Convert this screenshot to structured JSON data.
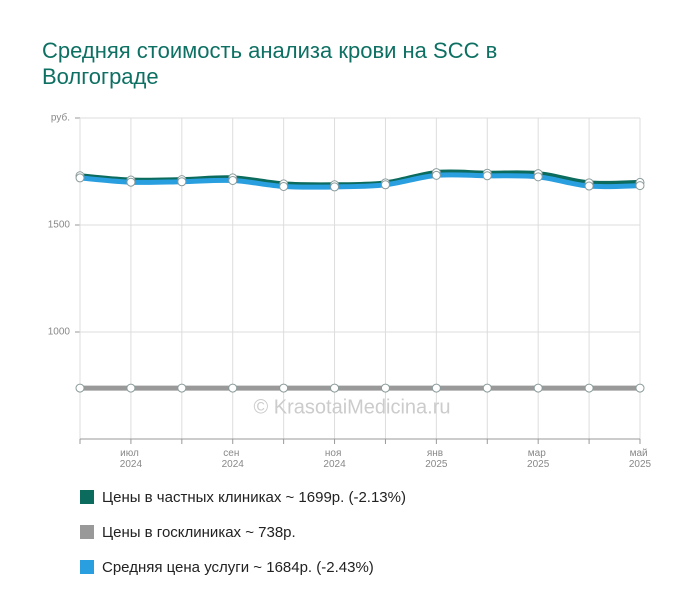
{
  "chart_data": {
    "type": "line",
    "title": "Средняя стоимость анализа крови на SCC в Волгограде",
    "watermark": "© KrasotaiMedicina.ru",
    "categories": [
      null,
      "июл 2024",
      null,
      "сен 2024",
      null,
      "ноя 2024",
      null,
      "янв 2025",
      null,
      "мар 2025",
      null,
      "май 2025"
    ],
    "series": [
      {
        "name": "Цены в частных клиниках ~ 1699р. (-2.13%)",
        "color": "#0b6b5d",
        "values": [
          1730,
          1710,
          1712,
          1720,
          1692,
          1688,
          1697,
          1745,
          1742,
          1740,
          1697,
          1699
        ]
      },
      {
        "name": "Цены в госклиниках ~ 738р.",
        "color": "#999999",
        "values": [
          738,
          738,
          738,
          738,
          738,
          738,
          738,
          738,
          738,
          738,
          738,
          738
        ]
      },
      {
        "name": "Средняя цена услуги ~ 1684р. (-2.43%)",
        "color": "#2a9fe0",
        "values": [
          1720,
          1700,
          1702,
          1708,
          1680,
          1678,
          1688,
          1732,
          1730,
          1725,
          1682,
          1684
        ]
      }
    ],
    "ylim": [
      500,
      2000
    ],
    "yticks": [
      1000,
      1500,
      {
        "value": 2000,
        "label": "руб."
      }
    ],
    "grid": true
  }
}
